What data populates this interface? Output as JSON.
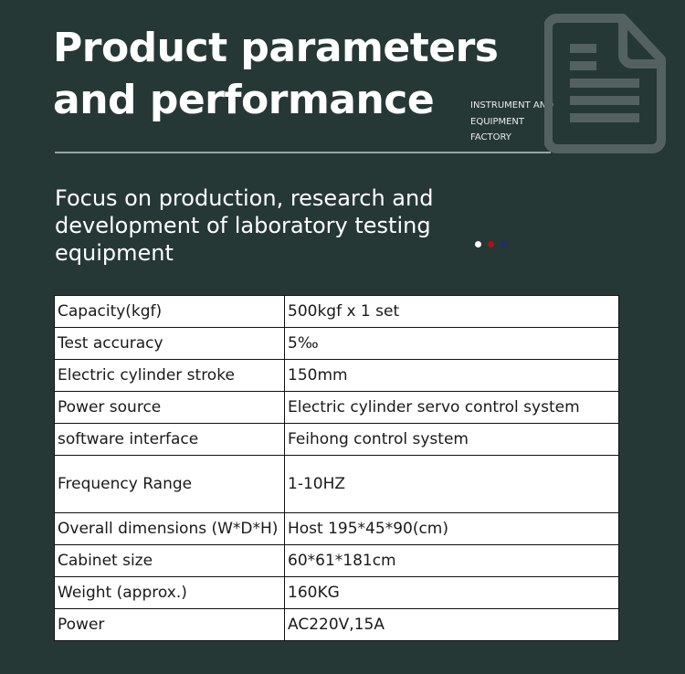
{
  "header": {
    "title_line1": "Product parameters",
    "title_line2": "and performance",
    "factory_lines": [
      "INSTRUMENT AND",
      "EQUIPMENT",
      "FACTORY"
    ],
    "icon": "document-icon",
    "subtitle": "Focus on production, research and development of laboratory testing equipment",
    "dot_colors": [
      "#ffffff",
      "#b0101a",
      "#1e2e6e"
    ]
  },
  "specs": [
    {
      "label": "Capacity(kgf)",
      "value": "500kgf x 1 set"
    },
    {
      "label": "Test accuracy",
      "value": "5‰"
    },
    {
      "label": "Electric cylinder stroke",
      "value": "150mm"
    },
    {
      "label": "Power source",
      "value": "Electric cylinder servo control system"
    },
    {
      "label": "software interface",
      "value": "Feihong control system"
    },
    {
      "label": "Frequency Range",
      "value": "1-10HZ"
    },
    {
      "label": "Overall dimensions (W*D*H)",
      "value": "Host 195*45*90(cm)"
    },
    {
      "label": "Cabinet size",
      "value": "60*61*181cm"
    },
    {
      "label": "Weight (approx.)",
      "value": "160KG"
    },
    {
      "label": "Power",
      "value": "AC220V,15A"
    }
  ]
}
